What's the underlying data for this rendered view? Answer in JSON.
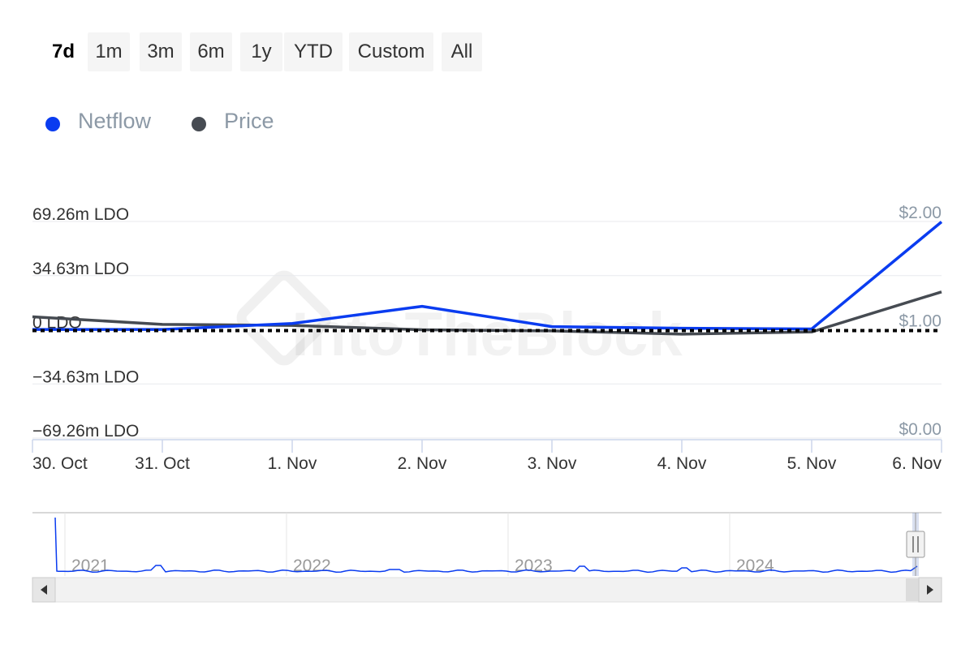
{
  "range_selector": {
    "buttons": [
      "7d",
      "1m",
      "3m",
      "6m",
      "1y",
      "YTD",
      "Custom",
      "All"
    ],
    "active": "7d"
  },
  "legend": {
    "netflow_label": "Netflow",
    "price_label": "Price"
  },
  "colors": {
    "netflow": "#0a3cf0",
    "price": "#464b52",
    "zero_line": "#000000",
    "grid": "#e8eaed"
  },
  "watermark": "IntoTheBlock",
  "chart_data": {
    "type": "line",
    "x": [
      "30. Oct",
      "31. Oct",
      "1. Nov",
      "2. Nov",
      "3. Nov",
      "4. Nov",
      "5. Nov",
      "6. Nov"
    ],
    "series": [
      {
        "name": "Netflow",
        "axis": "left",
        "unit": "LDO",
        "values": [
          0.2,
          0.2,
          4.0,
          15.0,
          2.0,
          1.0,
          0.5,
          69.0
        ]
      },
      {
        "name": "Price",
        "axis": "right",
        "unit": "USD",
        "values": [
          1.12,
          1.05,
          1.04,
          1.0,
          0.99,
          0.96,
          0.98,
          1.35
        ]
      }
    ],
    "y_left": {
      "ticks": [
        69.26,
        34.63,
        0,
        -34.63,
        -69.26
      ],
      "tick_labels": [
        "69.26m LDO",
        "34.63m LDO",
        "0 LDO",
        "−34.63m LDO",
        "−69.26m LDO"
      ],
      "range": [
        -69.26,
        69.26
      ]
    },
    "y_right": {
      "ticks": [
        2,
        1,
        0
      ],
      "tick_labels": [
        "$2.00",
        "$1.00",
        "$0.00"
      ],
      "range": [
        0,
        2
      ]
    },
    "zero_line": "dotted",
    "grid": true,
    "navigator": {
      "year_labels": [
        "2021",
        "2022",
        "2023",
        "2024"
      ]
    }
  }
}
